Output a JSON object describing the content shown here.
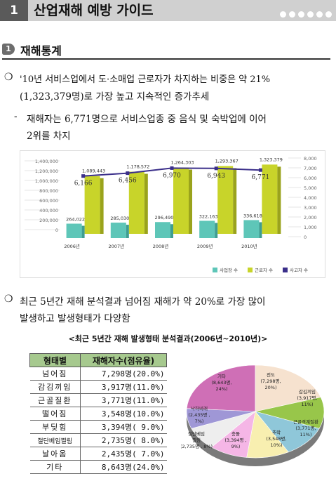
{
  "header": {
    "number": "1",
    "title": "산업재해 예방 가이드"
  },
  "section": {
    "icon": "1",
    "title": "재해통계"
  },
  "para1": {
    "bullet": "❍",
    "line1": "'10년 서비스업에서 도·소매업 근로자가 차지하는 비중은 약 21%",
    "line2": "(1,323,379명)로 가장 높고 지속적인 증가추세"
  },
  "para2": {
    "dash": "-",
    "line1": "재해자는 6,771명으로 서비스업종 중 음식 및 숙박업에 이어",
    "line2": "2위를 차지"
  },
  "para3": {
    "bullet": "❍",
    "line1": "최근 5년간 재해 분석결과 넘어짐 재해가 약 20%로 가장 많이",
    "line2": "발생하고 발생형태가 다양함"
  },
  "chart_data": [
    {
      "type": "bar",
      "categories": [
        "2006년",
        "2007년",
        "2008년",
        "2009년",
        "2010년"
      ],
      "y_left_ticks": [
        "1,400,000",
        "1,200,000",
        "1,000,000",
        "800,000",
        "600,000",
        "400,000",
        "200,000",
        "0"
      ],
      "y_right_ticks": [
        "8,000",
        "7,000",
        "6,000",
        "5,000",
        "4,000",
        "3,000",
        "2,000",
        "1,000",
        "0"
      ],
      "ylim_left": [
        0,
        1400000
      ],
      "ylim_right": [
        0,
        8000
      ],
      "series": [
        {
          "name": "사업장 수",
          "values": [
            264022,
            285030,
            296490,
            322163,
            336618
          ],
          "labels": [
            "264,022",
            "285,030",
            "296,490",
            "322,163",
            "336,618"
          ],
          "color": "#5ec6b8"
        },
        {
          "name": "근로자 수",
          "values": [
            1089443,
            1178572,
            1264303,
            1293367,
            1323379
          ],
          "labels": [
            "1,089,443",
            "1,178,572",
            "1,264,303",
            "1,293,367",
            "1,323,379"
          ],
          "color": "#c8d42a"
        },
        {
          "name": "사고자 수",
          "values": [
            6166,
            6456,
            6970,
            6943,
            6771
          ],
          "labels": [
            "6,166",
            "6,456",
            "6,970",
            "6,943",
            "6,771"
          ],
          "color": "#3b2f8a",
          "axis": "right"
        }
      ],
      "legend": "bottom-right"
    },
    {
      "type": "pie",
      "slices": [
        {
          "label": "기타",
          "detail": "(8,643명,",
          "pct": "24%)",
          "value": 24.0,
          "color": "#cf6fb6"
        },
        {
          "label": "전도",
          "detail": "(7,298명,",
          "pct": "20%)",
          "value": 20.0,
          "color": "#f6e2cf"
        },
        {
          "label": "감김끼임",
          "detail": "(3,917명,",
          "pct": "11%)",
          "value": 11.0,
          "color": "#98c64a"
        },
        {
          "label": "근골격계질환",
          "detail": "(3,771명,",
          "pct": "11%)",
          "value": 11.0,
          "color": "#8fc7d9"
        },
        {
          "label": "추락",
          "detail": "(3,548명,",
          "pct": "10%)",
          "value": 10.0,
          "color": "#f8efb0"
        },
        {
          "label": "충돌",
          "detail": "(3,394명 ,",
          "pct": "9%)",
          "value": 9.0,
          "color": "#f5b6e6"
        },
        {
          "label": "절단베임",
          "detail": "찔림",
          "pct": "(2,735명 , 8%)",
          "value": 8.0,
          "color": "#eeeeee"
        },
        {
          "label": "낙하비래",
          "detail": "(2,435명 ,",
          "pct": "7%)",
          "value": 7.0,
          "color": "#9f97d6"
        }
      ]
    }
  ],
  "table": {
    "title": "<최근 5년간 재해 발생형태 분석결과(2006년~2010년)>",
    "headers": [
      "형태별",
      "재해자수(점유율)"
    ],
    "rows": [
      {
        "cat": "넘어짐",
        "val": "7,298명(20.0%)"
      },
      {
        "cat": "감김끼임",
        "val": "3,917명(11.0%)"
      },
      {
        "cat": "근골질환",
        "val": "3,771명(11.0%)"
      },
      {
        "cat": "떨어짐",
        "val": "3,548명(10.0%)"
      },
      {
        "cat": "부딪힘",
        "val": "3,394명( 9.0%)"
      },
      {
        "cat": "절단베임찔림",
        "val": "2,735명( 8.0%)"
      },
      {
        "cat": "날아옴",
        "val": "2,435명( 7.0%)"
      },
      {
        "cat": "기타",
        "val": "8,643명(24.0%)"
      }
    ]
  }
}
